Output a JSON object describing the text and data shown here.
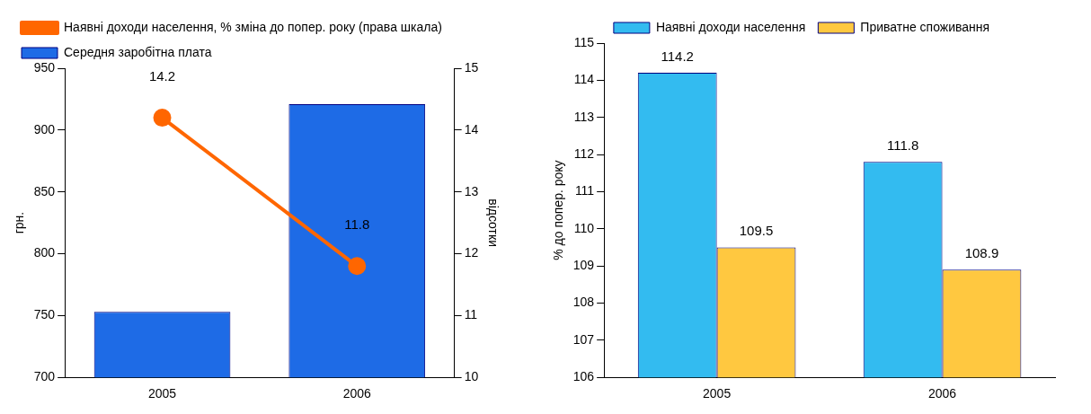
{
  "chart_data": [
    {
      "type": "bar",
      "categories": [
        "2005",
        "2006"
      ],
      "ylabel": "грн.",
      "y2label": "відсотки",
      "ylim": [
        700,
        950
      ],
      "yticks": [
        700,
        750,
        800,
        850,
        900,
        950
      ],
      "y2lim": [
        10,
        15
      ],
      "y2ticks": [
        10,
        11,
        12,
        13,
        14,
        15
      ],
      "grid": false,
      "legend": "top left",
      "marker": "circle",
      "series": [
        {
          "name": "Середня заробітна плата",
          "color": "#1e6be6",
          "values": [
            753,
            921
          ]
        },
        {
          "name": "Наявні доходи населення, % зміна до попер. року (права шкала)",
          "type": "line",
          "axis": "y2",
          "color": "#ff6600",
          "values": [
            14.2,
            11.8
          ],
          "value_labels": [
            "14.2",
            "11.8"
          ]
        }
      ]
    },
    {
      "type": "bar",
      "categories": [
        "2005",
        "2006"
      ],
      "ylabel": "% до попер. року",
      "ylim": [
        106,
        115
      ],
      "yticks": [
        106,
        107,
        108,
        109,
        110,
        111,
        112,
        113,
        114,
        115
      ],
      "grid": false,
      "legend": "top",
      "data_labels": true,
      "series": [
        {
          "name": "Наявні доходи населення",
          "color": "#33bbf0",
          "values": [
            114.2,
            111.8
          ]
        },
        {
          "name": "Приватне споживання",
          "color": "#ffc840",
          "values": [
            109.5,
            108.9
          ]
        }
      ]
    }
  ]
}
